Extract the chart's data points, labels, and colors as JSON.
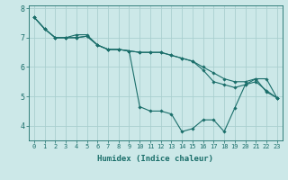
{
  "xlabel": "Humidex (Indice chaleur)",
  "ylabel": "",
  "background_color": "#cce8e8",
  "grid_color": "#aacfcf",
  "line_color": "#1a6e6a",
  "xlim": [
    -0.5,
    23.5
  ],
  "ylim": [
    3.5,
    8.1
  ],
  "line1_x": [
    0,
    1,
    2,
    3,
    4,
    5,
    6,
    7,
    8,
    9,
    10,
    11,
    12,
    13,
    14,
    15,
    16,
    17,
    18,
    19,
    20,
    21,
    22,
    23
  ],
  "line1_y": [
    7.7,
    7.3,
    7.0,
    7.0,
    7.0,
    7.05,
    6.75,
    6.6,
    6.6,
    6.55,
    6.5,
    6.5,
    6.5,
    6.4,
    6.3,
    6.2,
    6.0,
    5.8,
    5.6,
    5.5,
    5.5,
    5.6,
    5.6,
    4.95
  ],
  "line2_x": [
    0,
    1,
    2,
    3,
    4,
    5,
    6,
    7,
    8,
    9,
    10,
    11,
    12,
    13,
    14,
    15,
    16,
    17,
    18,
    19,
    20,
    21,
    22,
    23
  ],
  "line2_y": [
    7.7,
    7.3,
    7.0,
    7.0,
    7.1,
    7.1,
    6.75,
    6.6,
    6.6,
    6.55,
    4.65,
    4.5,
    4.5,
    4.4,
    3.8,
    3.9,
    4.2,
    4.2,
    3.8,
    4.6,
    5.4,
    5.6,
    5.15,
    4.95
  ],
  "line3_x": [
    0,
    1,
    2,
    3,
    4,
    5,
    6,
    7,
    8,
    9,
    10,
    11,
    12,
    13,
    14,
    15,
    16,
    17,
    18,
    19,
    20,
    21,
    22,
    23
  ],
  "line3_y": [
    7.7,
    7.3,
    7.0,
    7.0,
    7.0,
    7.05,
    6.75,
    6.6,
    6.6,
    6.55,
    6.5,
    6.5,
    6.5,
    6.4,
    6.3,
    6.2,
    5.9,
    5.5,
    5.4,
    5.3,
    5.4,
    5.5,
    5.2,
    4.95
  ],
  "xticks": [
    0,
    1,
    2,
    3,
    4,
    5,
    6,
    7,
    8,
    9,
    10,
    11,
    12,
    13,
    14,
    15,
    16,
    17,
    18,
    19,
    20,
    21,
    22,
    23
  ],
  "yticks": [
    4,
    5,
    6,
    7,
    8
  ],
  "marker": "D",
  "markersize": 1.8,
  "linewidth": 0.8,
  "tick_fontsize": 5.0,
  "xlabel_fontsize": 6.5
}
